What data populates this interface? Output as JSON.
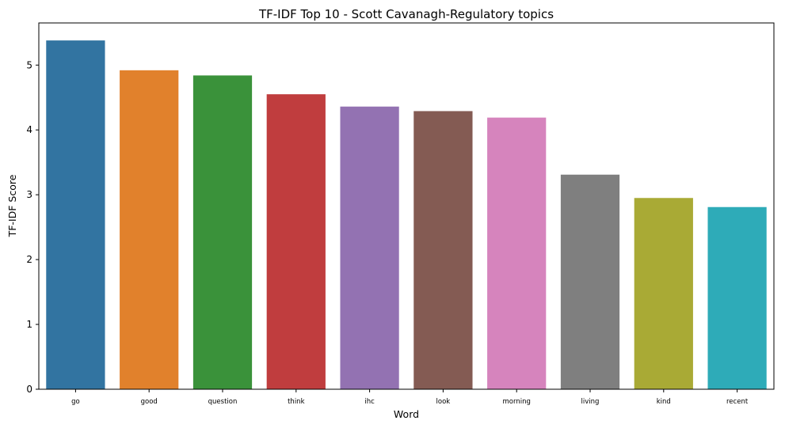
{
  "chart_data": {
    "type": "bar",
    "title": "TF-IDF Top 10 - Scott Cavanagh-Regulatory topics",
    "xlabel": "Word",
    "ylabel": "TF-IDF Score",
    "categories": [
      "go",
      "good",
      "question",
      "think",
      "ihc",
      "look",
      "morning",
      "living",
      "kind",
      "recent"
    ],
    "values": [
      5.38,
      4.92,
      4.84,
      4.55,
      4.36,
      4.29,
      4.19,
      3.31,
      2.95,
      2.81
    ],
    "colors": [
      "#3274a1",
      "#e1812c",
      "#3a923a",
      "#c03d3e",
      "#9372b2",
      "#845b53",
      "#d684bd",
      "#7f7f7f",
      "#a9aa35",
      "#2eabb8"
    ],
    "ylim": [
      0,
      5.65
    ],
    "yticks": [
      0,
      1,
      2,
      3,
      4,
      5
    ],
    "grid": false,
    "legend": "none"
  }
}
